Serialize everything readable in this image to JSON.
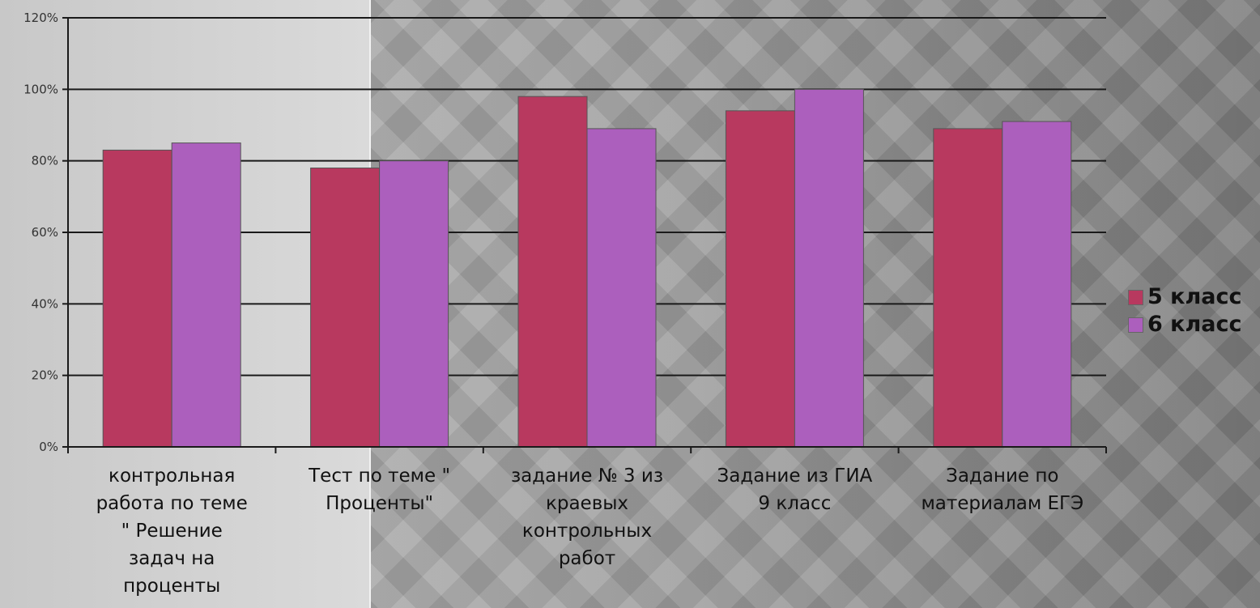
{
  "chart_data": {
    "type": "bar",
    "title": "",
    "xlabel": "",
    "ylabel": "",
    "ylim": [
      0,
      1.2
    ],
    "yticks": [
      "0%",
      "20%",
      "40%",
      "60%",
      "80%",
      "100%",
      "120%"
    ],
    "categories": [
      "контрольная работа по теме \" Решение задач на проценты",
      "Тест по теме \" Проценты\"",
      "задание № 3 из краевых контрольных работ",
      "Задание из ГИА 9 класс",
      "Задание по материалам ЕГЭ"
    ],
    "category_lines": [
      [
        "контрольная",
        "работа по теме",
        "\" Решение",
        "задач на",
        "проценты"
      ],
      [
        "Тест по теме \"",
        "Проценты\""
      ],
      [
        "задание № 3 из",
        "краевых",
        "контрольных",
        "работ"
      ],
      [
        "Задание из ГИА",
        "9 класс"
      ],
      [
        "Задание по",
        "материалам ЕГЭ"
      ]
    ],
    "series": [
      {
        "name": "5 класс",
        "color": "#b8395f",
        "values": [
          0.83,
          0.78,
          0.98,
          0.94,
          0.89
        ]
      },
      {
        "name": "6 класс",
        "color": "#ac5fbd",
        "values": [
          0.85,
          0.8,
          0.89,
          1.0,
          0.91
        ]
      }
    ],
    "grid": true,
    "legend_position": "right"
  }
}
